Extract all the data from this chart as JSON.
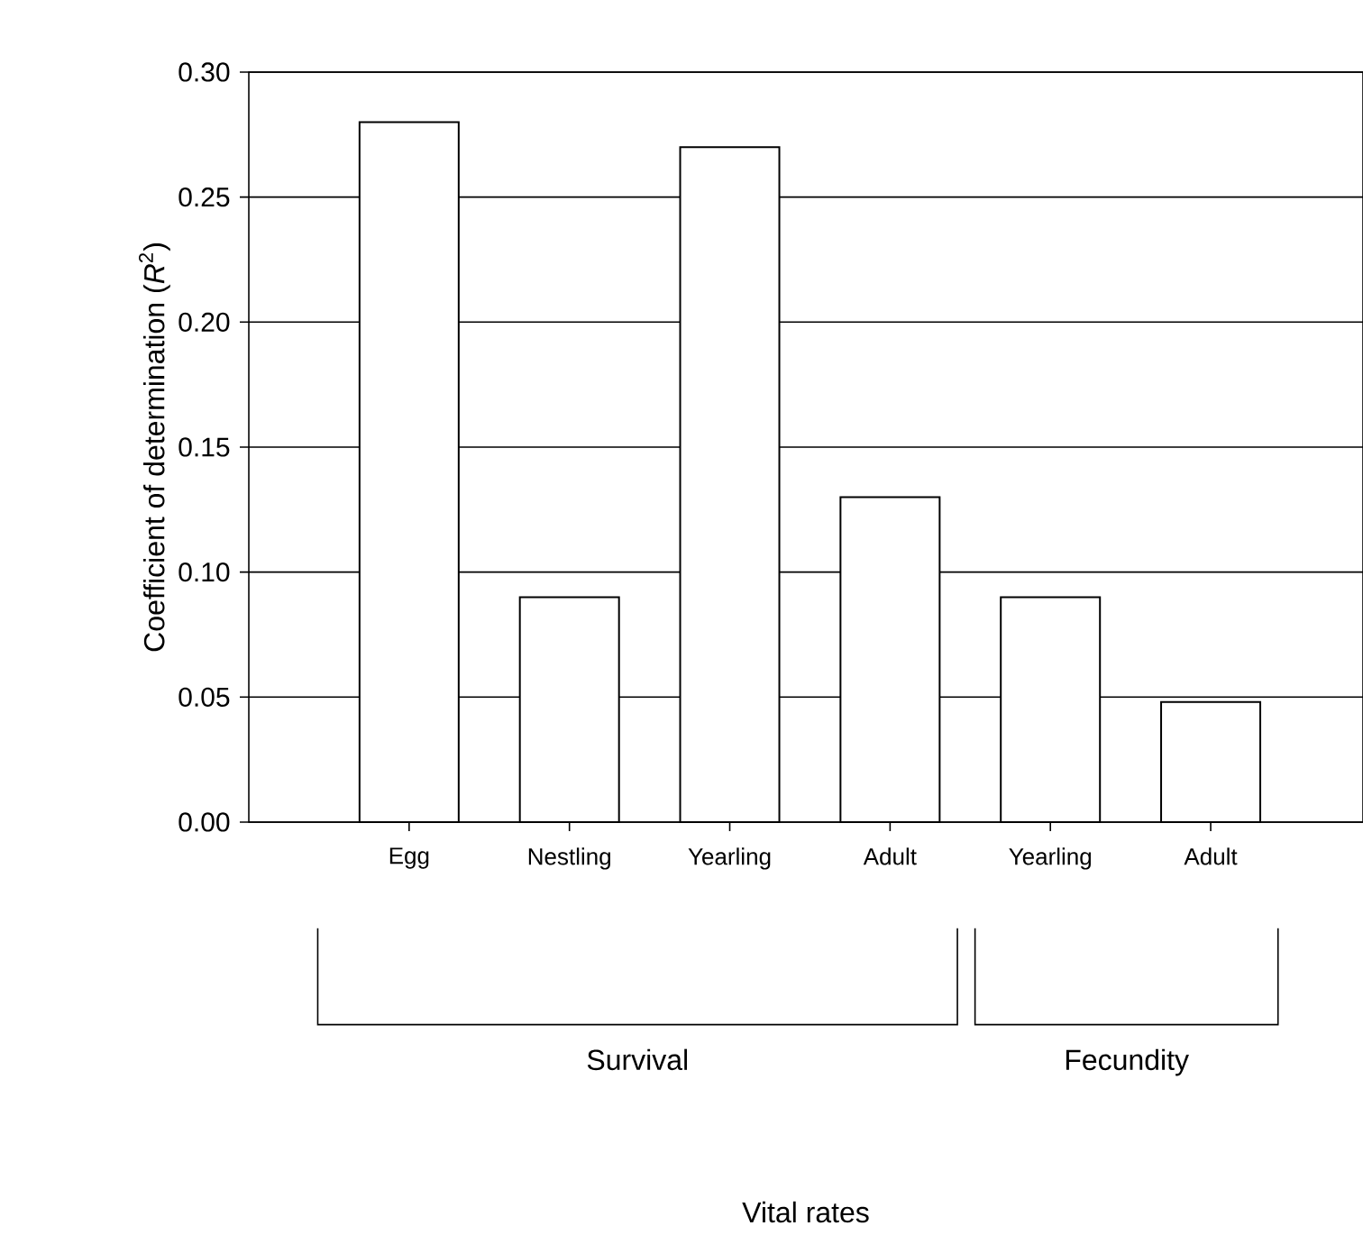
{
  "chart_data": {
    "type": "bar",
    "ylabel": "Coefficient of determination (*R*$^{2}$)",
    "categories": [
      "Egg",
      "Nestling",
      "Yearling",
      "Adult",
      "Yearling",
      "Adult"
    ],
    "values": [
      0.28,
      0.09,
      0.27,
      0.13,
      0.09,
      0.048
    ],
    "color": "#ffffff",
    "ylim": [
      0,
      0.3
    ],
    "yticks": [
      {
        "value": 0,
        "label": "0.00"
      },
      {
        "value": 0.05,
        "label": "0.05"
      },
      {
        "value": 0.1,
        "label": "0.10"
      },
      {
        "value": 0.15,
        "label": "0.15"
      },
      {
        "value": 0.2,
        "label": "0.20"
      },
      {
        "value": 0.25,
        "label": "0.25"
      },
      {
        "value": 0.3,
        "label": "0.30"
      }
    ],
    "grid": "y",
    "annotations": [
      "Survival",
      "Fecundity",
      "Vital rates"
    ]
  }
}
